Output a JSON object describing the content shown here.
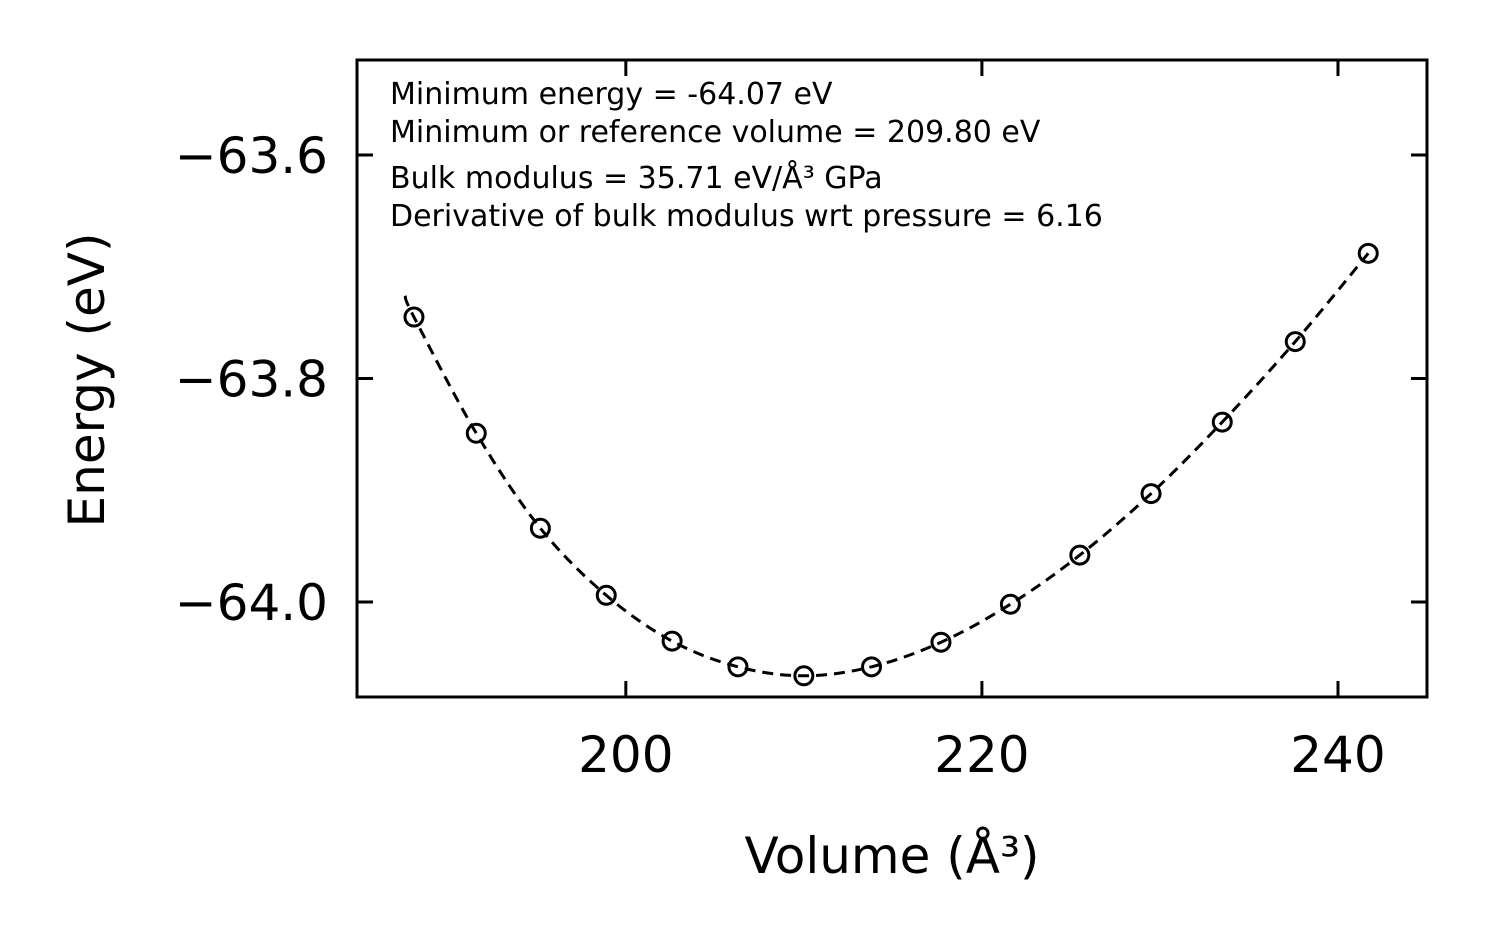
{
  "chart_data": {
    "type": "scatter",
    "title": "",
    "xlabel": "Volume (Å³)",
    "ylabel": "Energy (eV)",
    "xlim": [
      184.9,
      245.0
    ],
    "ylim": [
      -64.085,
      -63.515
    ],
    "xticks": [
      200,
      220,
      240
    ],
    "xtick_labels": [
      "200",
      "220",
      "240"
    ],
    "yticks": [
      -63.6,
      -63.8,
      -64.0
    ],
    "ytick_labels": [
      "−63.6",
      "−63.8",
      "−64.0"
    ],
    "grid": false,
    "legend": "none",
    "series": [
      {
        "name": "data",
        "style": "open-circle markers",
        "x": [
          188.1,
          191.6,
          195.2,
          198.9,
          202.6,
          206.3,
          210.0,
          213.8,
          217.7,
          221.6,
          225.5,
          229.5,
          233.5,
          237.6,
          241.7
        ],
        "y": [
          -63.745,
          -63.849,
          -63.934,
          -63.994,
          -64.035,
          -64.058,
          -64.066,
          -64.058,
          -64.036,
          -64.002,
          -63.958,
          -63.903,
          -63.839,
          -63.767,
          -63.688
        ]
      },
      {
        "name": "fit",
        "style": "dashed line",
        "x": [
          187.6,
          188.1,
          191.6,
          195.2,
          198.9,
          202.6,
          206.3,
          210.0,
          213.8,
          217.7,
          221.6,
          225.5,
          229.5,
          233.5,
          237.6,
          241.7
        ],
        "y": [
          -63.726,
          -63.745,
          -63.849,
          -63.934,
          -63.994,
          -64.035,
          -64.058,
          -64.066,
          -64.058,
          -64.036,
          -64.002,
          -63.958,
          -63.903,
          -63.839,
          -63.767,
          -63.688
        ]
      }
    ],
    "annotations": [
      "Minimum energy = -64.07 eV",
      "Minimum or reference volume = 209.80 eV",
      "Bulk modulus = 35.71 eV/Å³ GPa",
      "Derivative of bulk modulus wrt pressure = 6.16"
    ]
  },
  "colors": {
    "ink": "#000000",
    "background": "#ffffff"
  }
}
